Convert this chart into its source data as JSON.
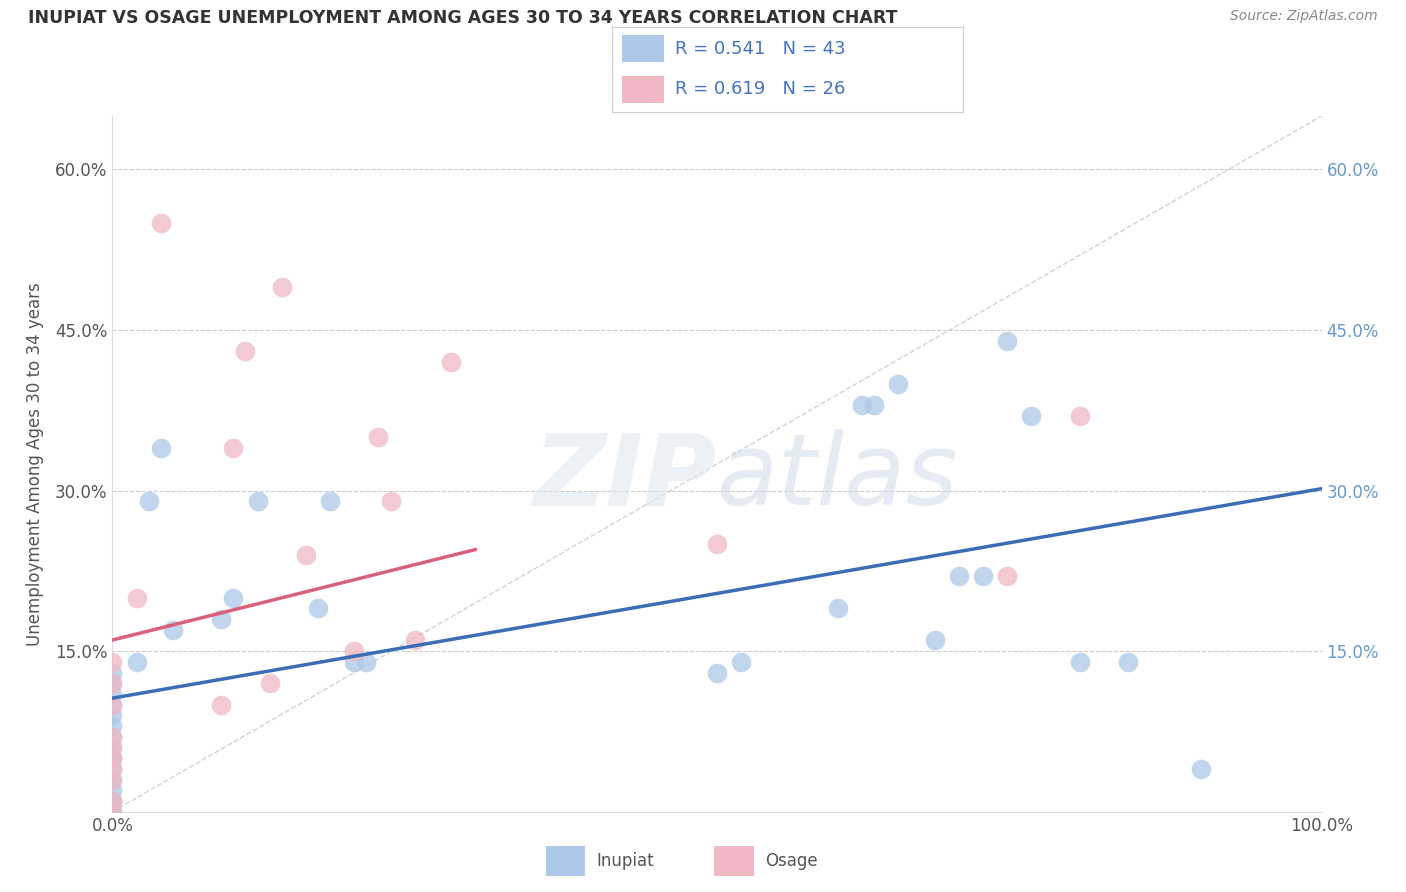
{
  "title": "INUPIAT VS OSAGE UNEMPLOYMENT AMONG AGES 30 TO 34 YEARS CORRELATION CHART",
  "source": "Source: ZipAtlas.com",
  "ylabel": "Unemployment Among Ages 30 to 34 years",
  "xlim": [
    0.0,
    1.0
  ],
  "ylim": [
    0.0,
    0.65
  ],
  "xtick_positions": [
    0.0,
    1.0
  ],
  "xtick_labels": [
    "0.0%",
    "100.0%"
  ],
  "ytick_values": [
    0.15,
    0.3,
    0.45,
    0.6
  ],
  "ytick_labels_left": [
    "15.0%",
    "30.0%",
    "45.0%",
    "60.0%"
  ],
  "ytick_labels_right": [
    "15.0%",
    "30.0%",
    "45.0%",
    "60.0%"
  ],
  "inupiat_R": 0.541,
  "inupiat_N": 43,
  "osage_R": 0.619,
  "osage_N": 26,
  "inupiat_color": "#adc8e8",
  "osage_color": "#f0b8c4",
  "inupiat_line_color": "#3a6db5",
  "osage_line_color": "#d9607a",
  "legend_label_inupiat": "Inupiat",
  "legend_label_osage": "Osage",
  "inupiat_x": [
    0.0,
    0.0,
    0.0,
    0.0,
    0.0,
    0.0,
    0.0,
    0.0,
    0.0,
    0.0,
    0.0,
    0.0,
    0.0,
    0.0,
    0.0,
    0.0,
    0.0,
    0.0,
    0.02,
    0.03,
    0.04,
    0.05,
    0.09,
    0.1,
    0.12,
    0.17,
    0.18,
    0.2,
    0.21,
    0.5,
    0.52,
    0.6,
    0.62,
    0.63,
    0.65,
    0.68,
    0.7,
    0.72,
    0.74,
    0.76,
    0.8,
    0.84,
    0.9
  ],
  "inupiat_y": [
    0.0,
    0.0,
    0.0,
    0.01,
    0.01,
    0.02,
    0.03,
    0.04,
    0.05,
    0.05,
    0.06,
    0.07,
    0.08,
    0.09,
    0.1,
    0.11,
    0.12,
    0.13,
    0.14,
    0.29,
    0.34,
    0.17,
    0.18,
    0.2,
    0.29,
    0.19,
    0.29,
    0.14,
    0.14,
    0.13,
    0.14,
    0.19,
    0.38,
    0.38,
    0.4,
    0.16,
    0.22,
    0.22,
    0.44,
    0.37,
    0.14,
    0.14,
    0.04
  ],
  "osage_x": [
    0.0,
    0.0,
    0.0,
    0.0,
    0.0,
    0.0,
    0.0,
    0.0,
    0.0,
    0.0,
    0.02,
    0.04,
    0.09,
    0.1,
    0.11,
    0.13,
    0.14,
    0.16,
    0.2,
    0.22,
    0.23,
    0.25,
    0.28,
    0.5,
    0.74,
    0.8
  ],
  "osage_y": [
    0.0,
    0.01,
    0.03,
    0.04,
    0.05,
    0.06,
    0.07,
    0.1,
    0.12,
    0.14,
    0.2,
    0.55,
    0.1,
    0.34,
    0.43,
    0.12,
    0.49,
    0.24,
    0.15,
    0.35,
    0.29,
    0.16,
    0.42,
    0.25,
    0.22,
    0.37
  ]
}
